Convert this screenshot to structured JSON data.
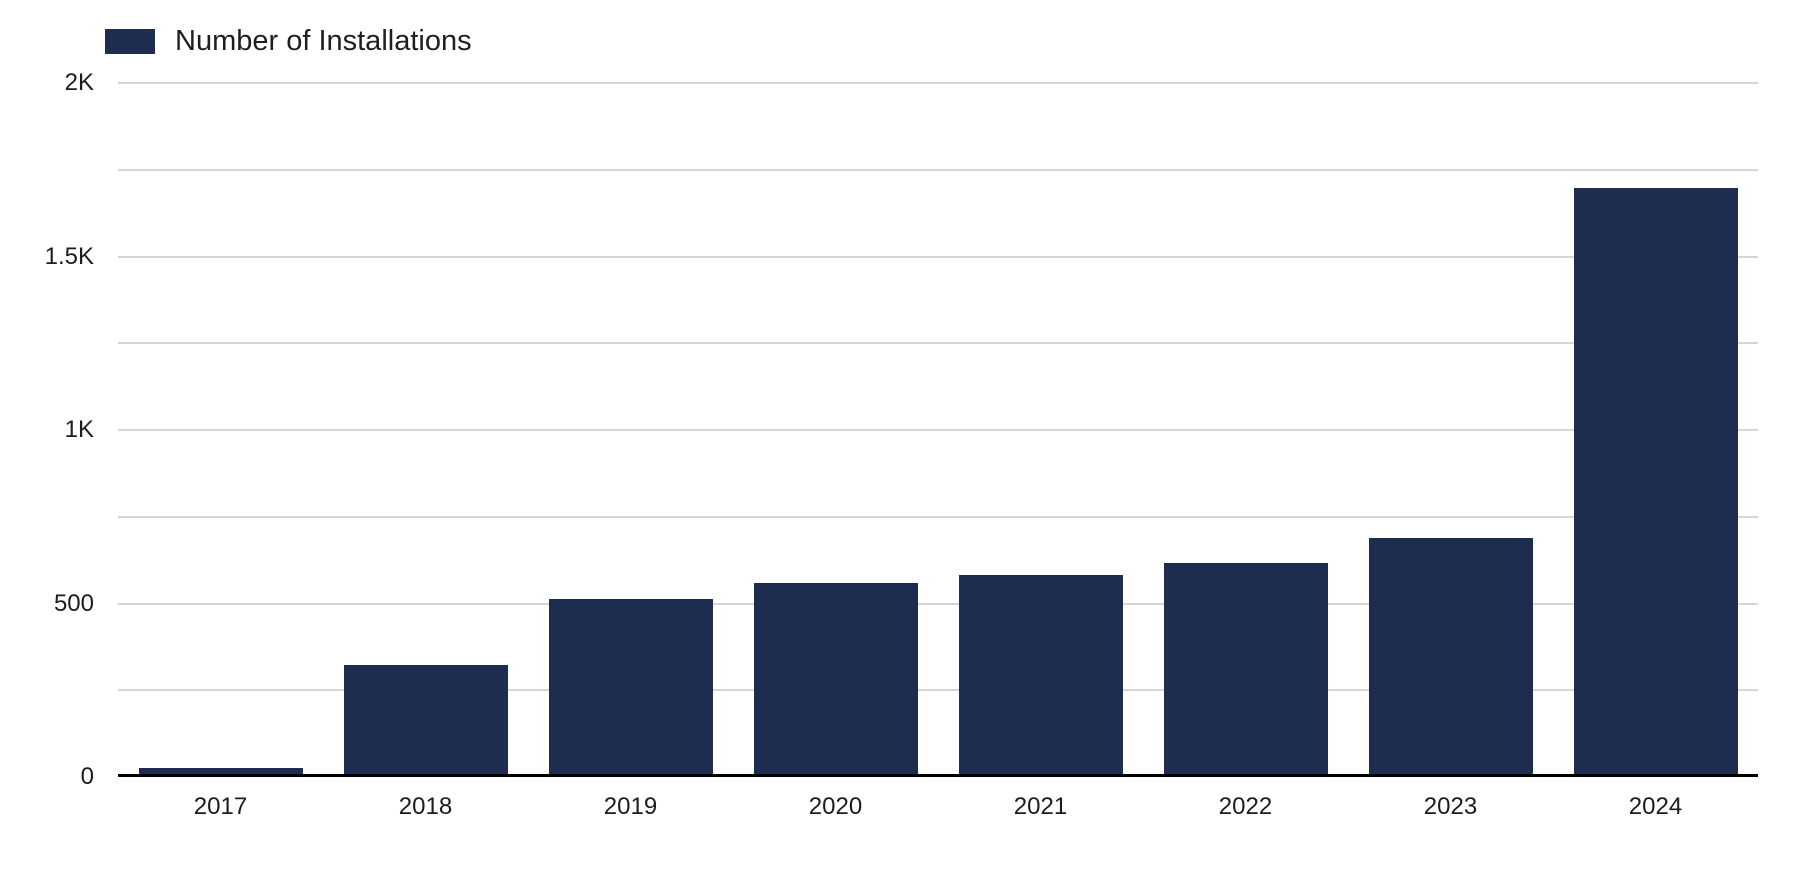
{
  "chart_data": {
    "type": "bar",
    "title": "",
    "series_label": "Number of Installations",
    "categories": [
      "2017",
      "2018",
      "2019",
      "2020",
      "2021",
      "2022",
      "2023",
      "2024"
    ],
    "values": [
      25,
      323,
      512,
      560,
      582,
      616,
      690,
      1696
    ],
    "xlabel": "",
    "ylabel": "",
    "ylim": [
      0,
      2000
    ],
    "yticks": [
      {
        "value": 0,
        "label": "0"
      },
      {
        "value": 250,
        "label": ""
      },
      {
        "value": 500,
        "label": "500"
      },
      {
        "value": 750,
        "label": ""
      },
      {
        "value": 1000,
        "label": "1K"
      },
      {
        "value": 1250,
        "label": ""
      },
      {
        "value": 1500,
        "label": "1.5K"
      },
      {
        "value": 1750,
        "label": ""
      },
      {
        "value": 2000,
        "label": "2K"
      }
    ],
    "grid": true,
    "legend_position": "top-left",
    "colors": {
      "bar": "#1d2c4f",
      "gridline": "#d6d6d6",
      "axis_line": "#000000",
      "tick_text": "#1c1c1c"
    }
  }
}
